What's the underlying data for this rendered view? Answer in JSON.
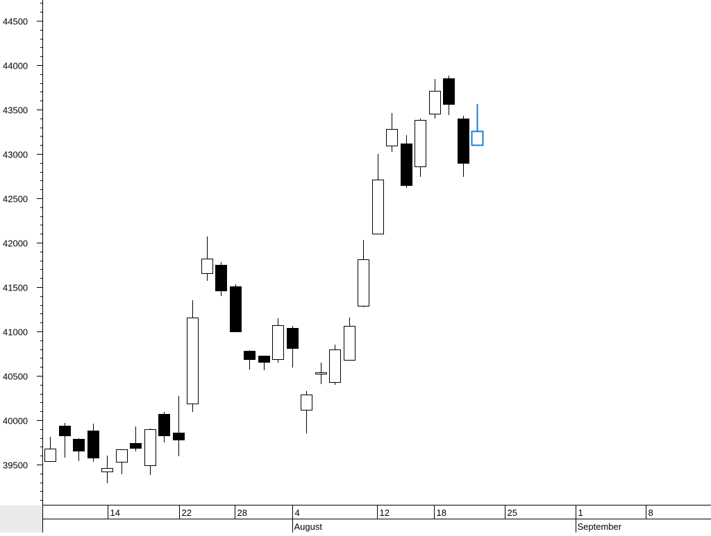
{
  "chart_data": {
    "type": "candlestick",
    "ylim": [
      39000,
      44700
    ],
    "y_ticks": [
      39500,
      40000,
      40500,
      41000,
      41500,
      42000,
      42500,
      43000,
      43500,
      44000,
      44500
    ],
    "x_tick_labels": [
      "14",
      "22",
      "28",
      "4",
      "12",
      "18",
      "25",
      "1",
      "8"
    ],
    "month_labels": [
      "August",
      "September"
    ],
    "grid": false,
    "colors": {
      "up_fill": "#ffffff",
      "down_fill": "#000000",
      "outline": "#000000",
      "highlight": "#1a7fd9",
      "axis_band": "#eaeaea"
    },
    "candles": [
      {
        "o": 39540,
        "h": 39810,
        "l": 39530,
        "c": 39680
      },
      {
        "o": 39940,
        "h": 39970,
        "l": 39580,
        "c": 39830
      },
      {
        "o": 39790,
        "h": 39800,
        "l": 39540,
        "c": 39660
      },
      {
        "o": 39880,
        "h": 39960,
        "l": 39530,
        "c": 39580
      },
      {
        "o": 39420,
        "h": 39600,
        "l": 39290,
        "c": 39460
      },
      {
        "o": 39530,
        "h": 39670,
        "l": 39390,
        "c": 39670
      },
      {
        "o": 39740,
        "h": 39930,
        "l": 39650,
        "c": 39690
      },
      {
        "o": 39490,
        "h": 39910,
        "l": 39380,
        "c": 39900
      },
      {
        "o": 40070,
        "h": 40090,
        "l": 39750,
        "c": 39830
      },
      {
        "o": 39860,
        "h": 40270,
        "l": 39590,
        "c": 39780
      },
      {
        "o": 40190,
        "h": 41350,
        "l": 40090,
        "c": 41160
      },
      {
        "o": 41660,
        "h": 42070,
        "l": 41570,
        "c": 41820
      },
      {
        "o": 41750,
        "h": 41780,
        "l": 41400,
        "c": 41460
      },
      {
        "o": 41510,
        "h": 41530,
        "l": 40990,
        "c": 41000
      },
      {
        "o": 40780,
        "h": 40790,
        "l": 40570,
        "c": 40690
      },
      {
        "o": 40730,
        "h": 40730,
        "l": 40560,
        "c": 40660
      },
      {
        "o": 40690,
        "h": 41150,
        "l": 40650,
        "c": 41070
      },
      {
        "o": 41040,
        "h": 41060,
        "l": 40590,
        "c": 40810
      },
      {
        "o": 40120,
        "h": 40330,
        "l": 39850,
        "c": 40290
      },
      {
        "o": 40520,
        "h": 40650,
        "l": 40410,
        "c": 40540
      },
      {
        "o": 40430,
        "h": 40850,
        "l": 40400,
        "c": 40800
      },
      {
        "o": 40680,
        "h": 41160,
        "l": 40670,
        "c": 41060
      },
      {
        "o": 41290,
        "h": 42030,
        "l": 41270,
        "c": 41810
      },
      {
        "o": 42100,
        "h": 43000,
        "l": 42090,
        "c": 42710
      },
      {
        "o": 43090,
        "h": 43460,
        "l": 43020,
        "c": 43280
      },
      {
        "o": 43120,
        "h": 43210,
        "l": 42620,
        "c": 42650
      },
      {
        "o": 42860,
        "h": 43400,
        "l": 42740,
        "c": 43380
      },
      {
        "o": 43450,
        "h": 43840,
        "l": 43400,
        "c": 43710
      },
      {
        "o": 43850,
        "h": 43880,
        "l": 43440,
        "c": 43560
      },
      {
        "o": 43400,
        "h": 43430,
        "l": 42740,
        "c": 42900
      },
      {
        "o": 43100,
        "h": 43560,
        "l": 43100,
        "c": 43260,
        "highlight": true
      }
    ]
  }
}
